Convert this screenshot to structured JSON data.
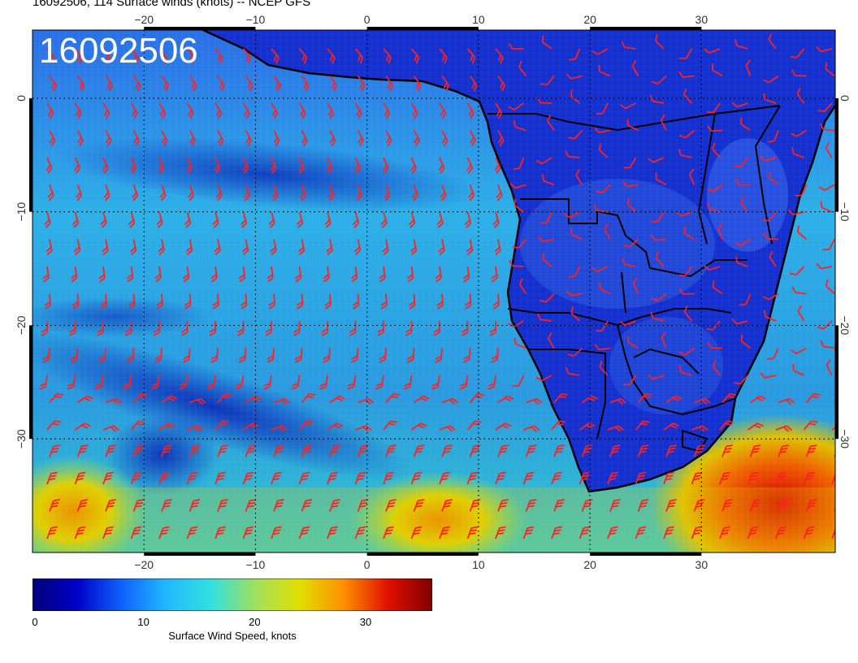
{
  "header": {
    "title": "16092506, 114 Surface winds (knots) -- NCEP GFS",
    "stamp": "16092506"
  },
  "map": {
    "lon_range": [
      -30,
      42
    ],
    "lat_range": [
      -40,
      6
    ],
    "lon_ticks": [
      {
        "value": -20,
        "label": "−20"
      },
      {
        "value": -10,
        "label": "−10"
      },
      {
        "value": 0,
        "label": "0"
      },
      {
        "value": 10,
        "label": "10"
      },
      {
        "value": 20,
        "label": "20"
      },
      {
        "value": 30,
        "label": "30"
      }
    ],
    "lat_ticks": [
      {
        "value": 0,
        "label": "0"
      },
      {
        "value": -10,
        "label": "−10"
      },
      {
        "value": -20,
        "label": "−20"
      },
      {
        "value": -30,
        "label": "−30"
      }
    ],
    "background_color": "#1a3fd6",
    "barb_color": "#ff2020",
    "coast_color": "#000000"
  },
  "colorbar": {
    "label": "Surface Wind Speed, knots",
    "range": [
      0,
      36
    ],
    "ticks": [
      {
        "value": 0,
        "label": "0"
      },
      {
        "value": 10,
        "label": "10"
      },
      {
        "value": 20,
        "label": "20"
      },
      {
        "value": 30,
        "label": "30"
      }
    ],
    "colors": [
      "#00007a",
      "#0000c8",
      "#1060ff",
      "#20b8ff",
      "#30e0e0",
      "#9ee060",
      "#e0e000",
      "#ff9000",
      "#e01000",
      "#800000"
    ]
  }
}
